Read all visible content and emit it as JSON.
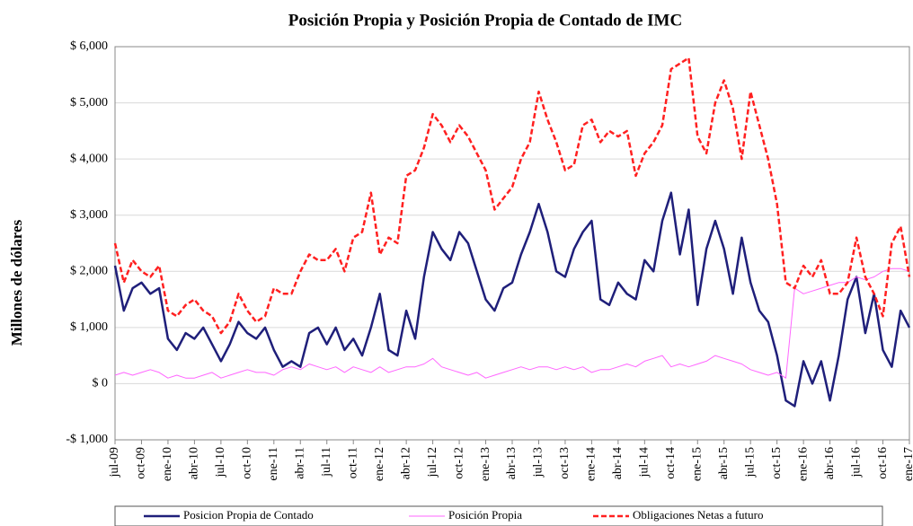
{
  "chart_data": {
    "type": "line",
    "title": "Posición Propia y Posición Propia de Contado de IMC",
    "y_label": "Millones de dólares",
    "categories": [
      "jul-09",
      null,
      null,
      "oct-09",
      null,
      null,
      "ene-10",
      null,
      null,
      "abr-10",
      null,
      null,
      "jul-10",
      null,
      null,
      "oct-10",
      null,
      null,
      "ene-11",
      null,
      null,
      "abr-11",
      null,
      null,
      "jul-11",
      null,
      null,
      "oct-11",
      null,
      null,
      "ene-12",
      null,
      null,
      "abr-12",
      null,
      null,
      "jul-12",
      null,
      null,
      "oct-12",
      null,
      null,
      "ene-13",
      null,
      null,
      "abr-13",
      null,
      null,
      "jul-13",
      null,
      null,
      "oct-13",
      null,
      null,
      "ene-14",
      null,
      null,
      "abr-14",
      null,
      null,
      "jul-14",
      null,
      null,
      "oct-14",
      null,
      null,
      "ene-15",
      null,
      null,
      "abr-15",
      null,
      null,
      "jul-15",
      null,
      null,
      "oct-15",
      null,
      null,
      "ene-16",
      null,
      null,
      "abr-16",
      null,
      null,
      "jul-16",
      null,
      null,
      "oct-16",
      null,
      null,
      "ene-17"
    ],
    "series": [
      {
        "name": "Posicion Propia de Contado",
        "color": "#1f1f7a",
        "line_style": "solid",
        "values": [
          2100,
          1300,
          1700,
          1800,
          1600,
          1700,
          800,
          600,
          900,
          800,
          1000,
          700,
          400,
          700,
          1100,
          900,
          800,
          1000,
          600,
          300,
          400,
          300,
          900,
          1000,
          700,
          1000,
          600,
          800,
          500,
          1000,
          1600,
          600,
          500,
          1300,
          800,
          1900,
          2700,
          2400,
          2200,
          2700,
          2500,
          2000,
          1500,
          1300,
          1700,
          1800,
          2300,
          2700,
          3200,
          2700,
          2000,
          1900,
          2400,
          2700,
          2900,
          1500,
          1400,
          1800,
          1600,
          1500,
          2200,
          2000,
          2900,
          3400,
          2300,
          3100,
          1400,
          2400,
          2900,
          2400,
          1600,
          2600,
          1800,
          1300,
          1100,
          500,
          -300,
          -400,
          400,
          0,
          400,
          -300,
          500,
          1500,
          1900,
          900,
          1600,
          600,
          300,
          1300,
          1000
        ]
      },
      {
        "name": "Posición Propia",
        "color": "#ff66ff",
        "line_style": "thin",
        "values": [
          150,
          200,
          150,
          200,
          250,
          200,
          100,
          150,
          100,
          100,
          150,
          200,
          100,
          150,
          200,
          250,
          200,
          200,
          150,
          250,
          300,
          250,
          350,
          300,
          250,
          300,
          200,
          300,
          250,
          200,
          300,
          200,
          250,
          300,
          300,
          350,
          450,
          300,
          250,
          200,
          150,
          200,
          100,
          150,
          200,
          250,
          300,
          250,
          300,
          300,
          250,
          300,
          250,
          300,
          200,
          250,
          250,
          300,
          350,
          300,
          400,
          450,
          500,
          300,
          350,
          300,
          350,
          400,
          500,
          450,
          400,
          350,
          250,
          200,
          150,
          200,
          100,
          1700,
          1600,
          1650,
          1700,
          1750,
          1800,
          1800,
          1900,
          1850,
          1900,
          2000,
          2050,
          2050,
          2000
        ]
      },
      {
        "name": "Obligaciones Netas a futuro",
        "color": "#ff2020",
        "line_style": "dashed",
        "values": [
          2500,
          1800,
          2200,
          2000,
          1900,
          2100,
          1300,
          1200,
          1400,
          1500,
          1300,
          1200,
          900,
          1100,
          1600,
          1300,
          1100,
          1200,
          1700,
          1600,
          1600,
          2000,
          2300,
          2200,
          2200,
          2400,
          2000,
          2600,
          2700,
          3400,
          2300,
          2600,
          2500,
          3700,
          3800,
          4200,
          4800,
          4600,
          4300,
          4600,
          4400,
          4100,
          3800,
          3100,
          3300,
          3500,
          4000,
          4300,
          5200,
          4700,
          4300,
          3800,
          3900,
          4600,
          4700,
          4300,
          4500,
          4400,
          4500,
          3700,
          4100,
          4300,
          4600,
          5600,
          5700,
          5800,
          4400,
          4100,
          5000,
          5400,
          4900,
          4000,
          5200,
          4600,
          4000,
          3200,
          1800,
          1700,
          2100,
          1900,
          2200,
          1600,
          1600,
          1800,
          2600,
          1900,
          1600,
          1200,
          2500,
          2800,
          1900
        ]
      }
    ],
    "ylim": [
      -1000,
      6000
    ],
    "yticks": [
      {
        "value": -1000,
        "label": "-$ 1,000"
      },
      {
        "value": 0,
        "label": "$ 0"
      },
      {
        "value": 1000,
        "label": "$ 1,000"
      },
      {
        "value": 2000,
        "label": "$ 2,000"
      },
      {
        "value": 3000,
        "label": "$ 3,000"
      },
      {
        "value": 4000,
        "label": "$ 4,000"
      },
      {
        "value": 5000,
        "label": "$ 5,000"
      },
      {
        "value": 6000,
        "label": "$ 6,000"
      }
    ],
    "grid": true,
    "legend": "bottom"
  }
}
